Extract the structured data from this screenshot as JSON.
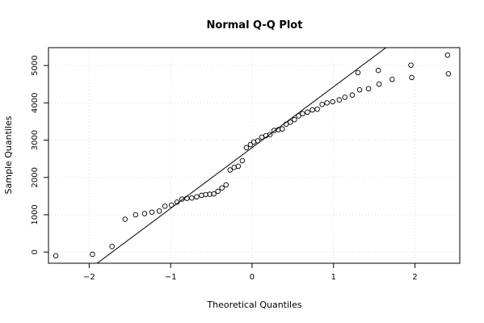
{
  "chart_data": {
    "type": "scatter",
    "title": "Normal Q-Q Plot",
    "xlabel": "Theoretical Quantiles",
    "ylabel": "Sample Quantiles",
    "xlim": [
      -2.5,
      2.55
    ],
    "ylim": [
      -300,
      5480
    ],
    "x_ticks": [
      -2,
      -1,
      0,
      1,
      2
    ],
    "y_ticks": [
      0,
      1000,
      2000,
      3000,
      4000,
      5000
    ],
    "grid": true,
    "reference_line": {
      "slope": 1630,
      "intercept": 2800
    },
    "points": [
      {
        "x": -2.41,
        "y": -100
      },
      {
        "x": -1.96,
        "y": -60
      },
      {
        "x": -1.72,
        "y": 150
      },
      {
        "x": -1.56,
        "y": 880
      },
      {
        "x": -1.43,
        "y": 1000
      },
      {
        "x": -1.32,
        "y": 1030
      },
      {
        "x": -1.23,
        "y": 1070
      },
      {
        "x": -1.14,
        "y": 1100
      },
      {
        "x": -1.07,
        "y": 1230
      },
      {
        "x": -0.99,
        "y": 1260
      },
      {
        "x": -0.92,
        "y": 1340
      },
      {
        "x": -0.86,
        "y": 1420
      },
      {
        "x": -0.8,
        "y": 1440
      },
      {
        "x": -0.74,
        "y": 1450
      },
      {
        "x": -0.68,
        "y": 1480
      },
      {
        "x": -0.62,
        "y": 1520
      },
      {
        "x": -0.57,
        "y": 1540
      },
      {
        "x": -0.52,
        "y": 1550
      },
      {
        "x": -0.47,
        "y": 1560
      },
      {
        "x": -0.42,
        "y": 1630
      },
      {
        "x": -0.37,
        "y": 1720
      },
      {
        "x": -0.32,
        "y": 1800
      },
      {
        "x": -0.27,
        "y": 2200
      },
      {
        "x": -0.22,
        "y": 2270
      },
      {
        "x": -0.17,
        "y": 2300
      },
      {
        "x": -0.12,
        "y": 2450
      },
      {
        "x": -0.07,
        "y": 2800
      },
      {
        "x": -0.02,
        "y": 2880
      },
      {
        "x": 0.02,
        "y": 2950
      },
      {
        "x": 0.07,
        "y": 2980
      },
      {
        "x": 0.12,
        "y": 3080
      },
      {
        "x": 0.17,
        "y": 3120
      },
      {
        "x": 0.22,
        "y": 3150
      },
      {
        "x": 0.27,
        "y": 3260
      },
      {
        "x": 0.32,
        "y": 3280
      },
      {
        "x": 0.37,
        "y": 3300
      },
      {
        "x": 0.42,
        "y": 3430
      },
      {
        "x": 0.47,
        "y": 3480
      },
      {
        "x": 0.52,
        "y": 3550
      },
      {
        "x": 0.57,
        "y": 3650
      },
      {
        "x": 0.62,
        "y": 3710
      },
      {
        "x": 0.68,
        "y": 3750
      },
      {
        "x": 0.74,
        "y": 3810
      },
      {
        "x": 0.8,
        "y": 3830
      },
      {
        "x": 0.86,
        "y": 3960
      },
      {
        "x": 0.92,
        "y": 4000
      },
      {
        "x": 0.99,
        "y": 4030
      },
      {
        "x": 1.07,
        "y": 4080
      },
      {
        "x": 1.14,
        "y": 4150
      },
      {
        "x": 1.23,
        "y": 4210
      },
      {
        "x": 1.32,
        "y": 4350
      },
      {
        "x": 1.43,
        "y": 4380
      },
      {
        "x": 1.56,
        "y": 4500
      },
      {
        "x": 1.72,
        "y": 4630
      },
      {
        "x": 1.96,
        "y": 4680
      },
      {
        "x": 2.41,
        "y": 4780
      }
    ],
    "points_extra": [
      {
        "x": 1.3,
        "y": 4810
      },
      {
        "x": 1.55,
        "y": 4870
      },
      {
        "x": 1.95,
        "y": 5010
      },
      {
        "x": 2.4,
        "y": 5280
      }
    ]
  }
}
